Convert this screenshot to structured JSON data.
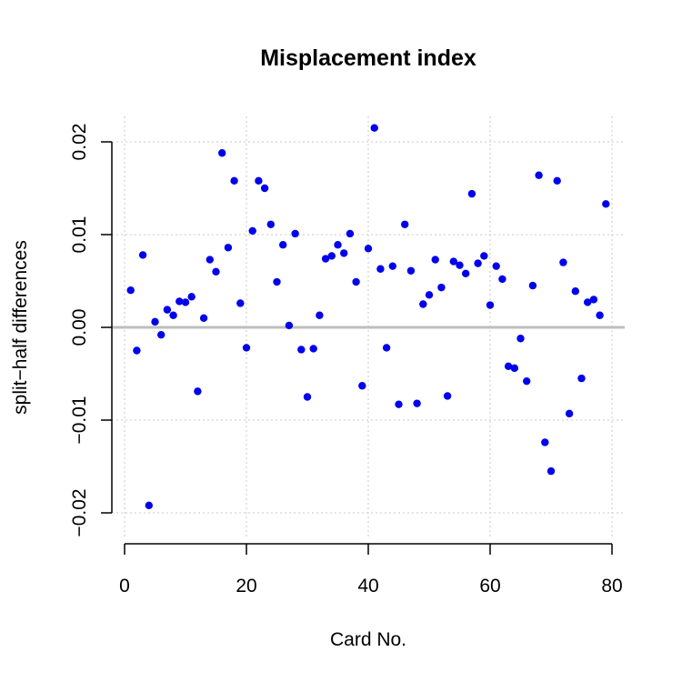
{
  "chart_data": {
    "type": "scatter",
    "title": "Misplacement index",
    "xlabel": "Card No.",
    "ylabel": "split−half differences",
    "xlim": [
      0,
      80
    ],
    "ylim": [
      -0.02,
      0.02
    ],
    "x_ticks": [
      0,
      20,
      40,
      60,
      80
    ],
    "x_tick_labels": [
      "0",
      "20",
      "40",
      "60",
      "80"
    ],
    "y_ticks": [
      -0.02,
      -0.01,
      0.0,
      0.01,
      0.02
    ],
    "y_tick_labels": [
      "−0.02",
      "−0.01",
      "0.00",
      "0.01",
      "0.02"
    ],
    "grid": true,
    "reference_line_y": 0,
    "colors": {
      "points": "#0000ee",
      "reference_line": "#bebebe",
      "grid": "#d3d3d3",
      "axis": "#000000"
    },
    "x": [
      1,
      2,
      3,
      4,
      5,
      6,
      7,
      8,
      9,
      10,
      11,
      12,
      13,
      14,
      15,
      16,
      17,
      18,
      19,
      20,
      21,
      22,
      23,
      24,
      25,
      26,
      27,
      28,
      29,
      30,
      31,
      32,
      33,
      34,
      35,
      36,
      37,
      38,
      39,
      40,
      41,
      42,
      43,
      44,
      45,
      46,
      47,
      48,
      49,
      50,
      51,
      52,
      53,
      54,
      55,
      56,
      57,
      58,
      59,
      60,
      61,
      62,
      63,
      64,
      65,
      66,
      67,
      68,
      69,
      70,
      71,
      72,
      73,
      74,
      75,
      76,
      77,
      78,
      79
    ],
    "y": [
      0.004,
      -0.0025,
      0.0078,
      -0.0192,
      0.0006,
      -0.0008,
      0.0019,
      0.0013,
      0.0028,
      0.0027,
      0.0033,
      -0.0069,
      0.001,
      0.0073,
      0.006,
      0.0188,
      0.0086,
      0.0158,
      0.0026,
      -0.0022,
      0.0104,
      0.0158,
      0.015,
      0.0111,
      0.0049,
      0.0089,
      0.0002,
      0.0101,
      -0.0024,
      -0.0075,
      -0.0023,
      0.0013,
      0.0074,
      0.0077,
      0.0089,
      0.008,
      0.0101,
      0.0049,
      -0.0063,
      0.0085,
      0.0215,
      0.0063,
      -0.0022,
      0.0066,
      -0.0083,
      0.0111,
      0.0061,
      -0.0082,
      0.0025,
      0.0035,
      0.0073,
      0.0043,
      -0.0074,
      0.0071,
      0.0067,
      0.0058,
      0.0144,
      0.0069,
      0.0077,
      0.0024,
      0.0066,
      0.0052,
      -0.0042,
      -0.0044,
      -0.0012,
      -0.0058,
      0.0045,
      0.0164,
      -0.0124,
      -0.0155,
      0.0158,
      0.007,
      -0.0093,
      0.0039,
      -0.0055,
      0.0027,
      0.003,
      0.0013,
      0.0133
    ]
  }
}
